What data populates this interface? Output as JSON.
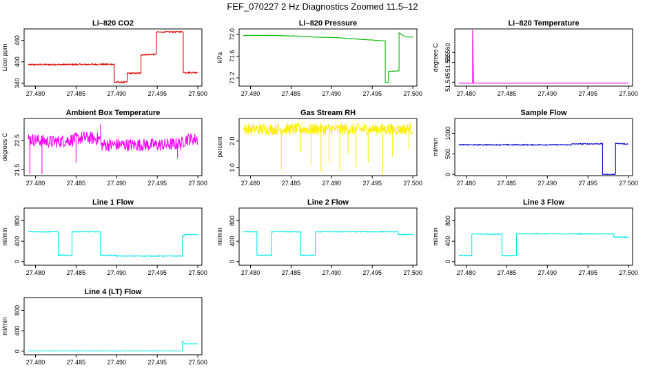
{
  "title": "FEF_070227  2 Hz Diagnostics Zoomed 11.5–12",
  "chart_data": [
    {
      "type": "line",
      "title": "Li–820 CO2",
      "ylabel": "Licor ppm",
      "color": "#dd0000",
      "xlim": [
        27.4786,
        27.5005
      ],
      "ylim": [
        332,
        492
      ],
      "xticks": [
        27.48,
        27.485,
        27.49,
        27.495,
        27.5
      ],
      "xtick_labels": [
        "27.480",
        "27.485",
        "27.490",
        "27.495",
        "27.500"
      ],
      "yticks": [
        340,
        400,
        460
      ],
      "ytick_labels": [
        "340",
        "400",
        "460"
      ],
      "series": [
        {
          "noise": 2,
          "points": [
            [
              27.4791,
              392
            ],
            [
              27.4897,
              393
            ],
            [
              27.4897,
              343
            ],
            [
              27.4913,
              343
            ],
            [
              27.4913,
              368
            ],
            [
              27.493,
              368
            ],
            [
              27.493,
              420
            ],
            [
              27.4949,
              421
            ],
            [
              27.4949,
              483
            ],
            [
              27.4982,
              484
            ],
            [
              27.4982,
              370
            ],
            [
              27.5,
              370
            ]
          ]
        }
      ]
    },
    {
      "type": "line",
      "title": "Li–820 Pressure",
      "ylabel": "kPa",
      "color": "#00bb00",
      "xlim": [
        27.4786,
        27.5005
      ],
      "ylim": [
        71.05,
        72.1
      ],
      "xticks": [
        27.48,
        27.485,
        27.49,
        27.495,
        27.5
      ],
      "xtick_labels": [
        "27.480",
        "27.485",
        "27.490",
        "27.495",
        "27.500"
      ],
      "yticks": [
        71.2,
        71.6,
        72.0
      ],
      "ytick_labels": [
        "71.2",
        "71.6",
        "72.0"
      ],
      "series": [
        {
          "noise": 0.004,
          "points": [
            [
              27.4791,
              71.98
            ],
            [
              27.483,
              71.98
            ],
            [
              27.4855,
              71.97
            ],
            [
              27.488,
              71.95
            ],
            [
              27.4905,
              71.94
            ],
            [
              27.4925,
              71.92
            ],
            [
              27.4945,
              71.9
            ],
            [
              27.4966,
              71.88
            ],
            [
              27.4966,
              71.12
            ],
            [
              27.497,
              71.12
            ],
            [
              27.497,
              71.32
            ],
            [
              27.4983,
              71.33
            ],
            [
              27.4983,
              72.03
            ],
            [
              27.499,
              71.96
            ],
            [
              27.5,
              71.95
            ]
          ]
        }
      ]
    },
    {
      "type": "line",
      "title": "Li–820 Temperature",
      "ylabel": "degrees C",
      "color": "#ee00ee",
      "xlim": [
        27.4786,
        27.5005
      ],
      "ylim": [
        51.543,
        51.572
      ],
      "xticks": [
        27.48,
        27.485,
        27.49,
        27.495,
        27.5
      ],
      "xtick_labels": [
        "27.480",
        "27.485",
        "27.490",
        "27.495",
        "27.500"
      ],
      "yticks": [
        51.545,
        51.555,
        51.56
      ],
      "ytick_labels": [
        "51.545",
        "51.555",
        "51.560"
      ],
      "series": [
        {
          "noise": 0,
          "points": [
            [
              27.4791,
              51.5445
            ],
            [
              27.4808,
              51.5445
            ],
            [
              27.4808,
              51.5715
            ],
            [
              27.4809,
              51.5445
            ],
            [
              27.5,
              51.5445
            ]
          ]
        }
      ]
    },
    {
      "type": "line",
      "title": "Ambient Box Temperature",
      "ylabel": "degrees C",
      "color": "#ff00ff",
      "xlim": [
        27.4786,
        27.5005
      ],
      "ylim": [
        21.3,
        23.25
      ],
      "xticks": [
        27.48,
        27.485,
        27.49,
        27.495,
        27.5
      ],
      "xtick_labels": [
        "27.480",
        "27.485",
        "27.490",
        "27.495",
        "27.500"
      ],
      "yticks": [
        21.5,
        22.5
      ],
      "ytick_labels": [
        "21.5",
        "22.5"
      ],
      "series": [
        {
          "noise": 0.22,
          "spikes": [
            [
              27.4793,
              21.35
            ],
            [
              27.4808,
              21.35
            ],
            [
              27.485,
              21.75
            ],
            [
              27.488,
              23.05
            ],
            [
              27.4975,
              21.9
            ]
          ],
          "points": [
            [
              27.4791,
              22.55
            ],
            [
              27.482,
              22.45
            ],
            [
              27.484,
              22.5
            ],
            [
              27.486,
              22.6
            ],
            [
              27.488,
              22.55
            ],
            [
              27.4881,
              22.35
            ],
            [
              27.494,
              22.35
            ],
            [
              27.496,
              22.35
            ],
            [
              27.498,
              22.4
            ],
            [
              27.4985,
              22.55
            ],
            [
              27.5,
              22.55
            ]
          ]
        }
      ]
    },
    {
      "type": "line",
      "title": "Gas Stream RH",
      "ylabel": "percent",
      "color": "#ffee00",
      "xlim": [
        27.4786,
        27.5005
      ],
      "ylim": [
        0.7,
        2.85
      ],
      "xticks": [
        27.48,
        27.485,
        27.49,
        27.495,
        27.5
      ],
      "xtick_labels": [
        "27.480",
        "27.485",
        "27.490",
        "27.495",
        "27.500"
      ],
      "yticks": [
        1.0,
        2.0
      ],
      "ytick_labels": [
        "1.0",
        "2.0"
      ],
      "series": [
        {
          "noise": 0.22,
          "spikes": [
            [
              27.4838,
              0.95
            ],
            [
              27.4862,
              1.6
            ],
            [
              27.4875,
              1.1
            ],
            [
              27.4887,
              0.85
            ],
            [
              27.4897,
              1.2
            ],
            [
              27.491,
              0.9
            ],
            [
              27.492,
              1.5
            ],
            [
              27.493,
              1.0
            ],
            [
              27.4945,
              1.2
            ],
            [
              27.4963,
              0.75
            ],
            [
              27.4975,
              1.4
            ],
            [
              27.4995,
              1.7
            ]
          ],
          "points": [
            [
              27.4791,
              2.45
            ],
            [
              27.5,
              2.45
            ]
          ]
        }
      ]
    },
    {
      "type": "line",
      "title": "Sample Flow",
      "ylabel": "ml/min",
      "color": "#0000cc",
      "xlim": [
        27.4786,
        27.5005
      ],
      "ylim": [
        -30,
        1360
      ],
      "xticks": [
        27.48,
        27.485,
        27.49,
        27.495,
        27.5
      ],
      "xtick_labels": [
        "27.480",
        "27.485",
        "27.490",
        "27.495",
        "27.500"
      ],
      "yticks": [
        0,
        500,
        1000
      ],
      "ytick_labels": [
        "0",
        "500",
        "1000"
      ],
      "series": [
        {
          "noise": 12,
          "points": [
            [
              27.4791,
              720
            ],
            [
              27.493,
              720
            ],
            [
              27.493,
              740
            ],
            [
              27.4968,
              745
            ],
            [
              27.4968,
              0
            ],
            [
              27.4984,
              0
            ],
            [
              27.4984,
              760
            ],
            [
              27.5,
              730
            ]
          ]
        }
      ]
    },
    {
      "type": "line",
      "title": "Line 1 Flow",
      "ylabel": "ml/min",
      "color": "#00e8e8",
      "xlim": [
        27.4786,
        27.5005
      ],
      "ylim": [
        -70,
        1050
      ],
      "xticks": [
        27.48,
        27.485,
        27.49,
        27.495,
        27.5
      ],
      "xtick_labels": [
        "27.480",
        "27.485",
        "27.490",
        "27.495",
        "27.500"
      ],
      "yticks": [
        0,
        400,
        800
      ],
      "ytick_labels": [
        "0",
        "400",
        "800"
      ],
      "series": [
        {
          "noise": 8,
          "points": [
            [
              27.4791,
              585
            ],
            [
              27.4828,
              585
            ],
            [
              27.4828,
              125
            ],
            [
              27.4845,
              125
            ],
            [
              27.4845,
              585
            ],
            [
              27.488,
              585
            ],
            [
              27.488,
              125
            ],
            [
              27.4899,
              125
            ],
            [
              27.4899,
              110
            ],
            [
              27.4981,
              110
            ],
            [
              27.4981,
              500
            ],
            [
              27.4985,
              530
            ],
            [
              27.5,
              530
            ]
          ]
        }
      ]
    },
    {
      "type": "line",
      "title": "Line 2 Flow",
      "ylabel": "ml/min",
      "color": "#00e8e8",
      "xlim": [
        27.4786,
        27.5005
      ],
      "ylim": [
        -70,
        1050
      ],
      "xticks": [
        27.48,
        27.485,
        27.49,
        27.495,
        27.5
      ],
      "xtick_labels": [
        "27.480",
        "27.485",
        "27.490",
        "27.495",
        "27.500"
      ],
      "yticks": [
        0,
        400,
        800
      ],
      "ytick_labels": [
        "0",
        "400",
        "800"
      ],
      "series": [
        {
          "noise": 8,
          "points": [
            [
              27.4791,
              585
            ],
            [
              27.4808,
              585
            ],
            [
              27.4808,
              125
            ],
            [
              27.4826,
              125
            ],
            [
              27.4826,
              585
            ],
            [
              27.4862,
              585
            ],
            [
              27.4862,
              125
            ],
            [
              27.488,
              125
            ],
            [
              27.488,
              585
            ],
            [
              27.4982,
              585
            ],
            [
              27.4982,
              530
            ],
            [
              27.5,
              530
            ]
          ]
        }
      ]
    },
    {
      "type": "line",
      "title": "Line 3 Flow",
      "ylabel": "ml/min",
      "color": "#00e8e8",
      "xlim": [
        27.4786,
        27.5005
      ],
      "ylim": [
        -70,
        1050
      ],
      "xticks": [
        27.48,
        27.485,
        27.49,
        27.495,
        27.5
      ],
      "xtick_labels": [
        "27.480",
        "27.485",
        "27.490",
        "27.495",
        "27.500"
      ],
      "yticks": [
        0,
        400,
        800
      ],
      "ytick_labels": [
        "0",
        "400",
        "800"
      ],
      "series": [
        {
          "noise": 8,
          "points": [
            [
              27.4791,
              120
            ],
            [
              27.4807,
              120
            ],
            [
              27.4807,
              540
            ],
            [
              27.4844,
              540
            ],
            [
              27.4844,
              120
            ],
            [
              27.4862,
              120
            ],
            [
              27.4862,
              545
            ],
            [
              27.4982,
              545
            ],
            [
              27.4982,
              480
            ],
            [
              27.5,
              480
            ]
          ]
        }
      ]
    },
    {
      "type": "line",
      "title": "Line 4 (LT) Flow",
      "ylabel": "ml/min",
      "color": "#00e8e8",
      "xlim": [
        27.4786,
        27.5005
      ],
      "ylim": [
        -70,
        1050
      ],
      "xticks": [
        27.48,
        27.485,
        27.49,
        27.495,
        27.5
      ],
      "xtick_labels": [
        "27.480",
        "27.485",
        "27.490",
        "27.495",
        "27.500"
      ],
      "yticks": [
        0,
        400,
        800
      ],
      "ytick_labels": [
        "0",
        "400",
        "800"
      ],
      "series": [
        {
          "noise": 2,
          "points": [
            [
              27.4791,
              5
            ],
            [
              27.4981,
              5
            ],
            [
              27.4981,
              190
            ],
            [
              27.4984,
              145
            ],
            [
              27.5,
              145
            ]
          ]
        }
      ]
    }
  ]
}
